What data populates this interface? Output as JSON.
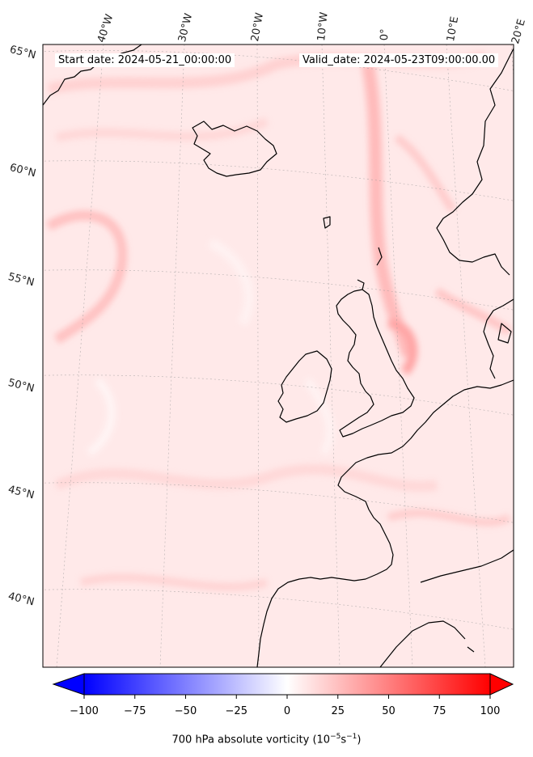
{
  "header": {
    "start_label": "Start date: 2024-05-21_00:00:00",
    "valid_label": "Valid_date: 2024-05-23T09:00:00.00"
  },
  "longitude_labels": [
    "40°W",
    "30°W",
    "20°W",
    "10°W",
    "0°",
    "10°E",
    "20°E"
  ],
  "latitude_labels": [
    "65°N",
    "60°N",
    "55°N",
    "50°N",
    "45°N",
    "40°N"
  ],
  "colorbar": {
    "label_text": "700 hPa absolute vorticity (10",
    "label_exp1": "−5",
    "label_mid": "s",
    "label_exp2": "−1",
    "label_end": ")",
    "min": -100,
    "max": 100,
    "ticks": [
      "−100",
      "−75",
      "−50",
      "−25",
      "0",
      "25",
      "50",
      "75",
      "100"
    ],
    "colors": {
      "low": "#0000ff",
      "mid": "#ffffff",
      "high": "#ff0000"
    }
  },
  "map": {
    "field_base_color": "#ffe9e9",
    "coastline_color": "#000000",
    "gridline_color": "#999999"
  }
}
